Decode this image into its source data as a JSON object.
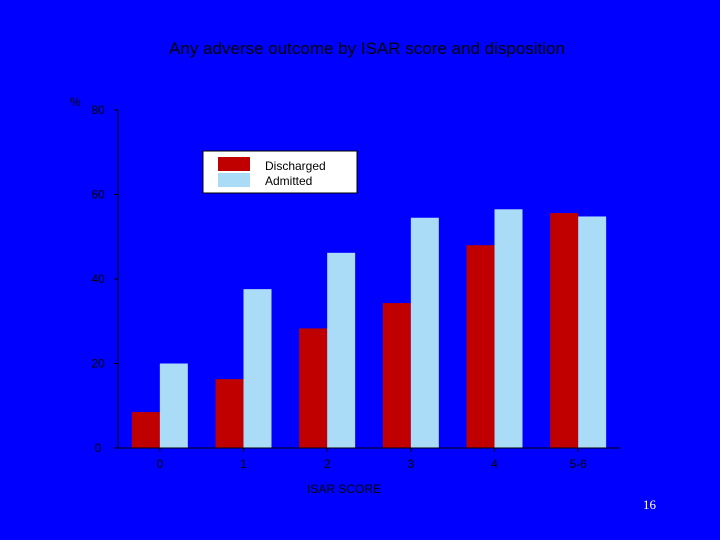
{
  "slide": {
    "page_number": "16"
  },
  "chart_data": {
    "type": "bar",
    "title": "Any adverse outcome by ISAR score and disposition",
    "xlabel": "ISAR SCORE",
    "ylabel": "%",
    "categories": [
      "0",
      "1",
      "2",
      "3",
      "4",
      "5-6"
    ],
    "ylim": [
      0,
      80
    ],
    "yticks": [
      "0",
      "20",
      "40",
      "60",
      "80"
    ],
    "ytick_values": [
      0,
      20,
      40,
      60,
      80
    ],
    "grid": false,
    "legend_position": "top-left",
    "series": [
      {
        "name": "Discharged",
        "color": "#c00000",
        "values": [
          8.5,
          16.3,
          28.3,
          34.3,
          48.0,
          55.6
        ]
      },
      {
        "name": "Admitted",
        "color": "#aadcf8",
        "values": [
          20.0,
          37.6,
          46.2,
          54.5,
          56.5,
          54.8
        ]
      }
    ]
  }
}
